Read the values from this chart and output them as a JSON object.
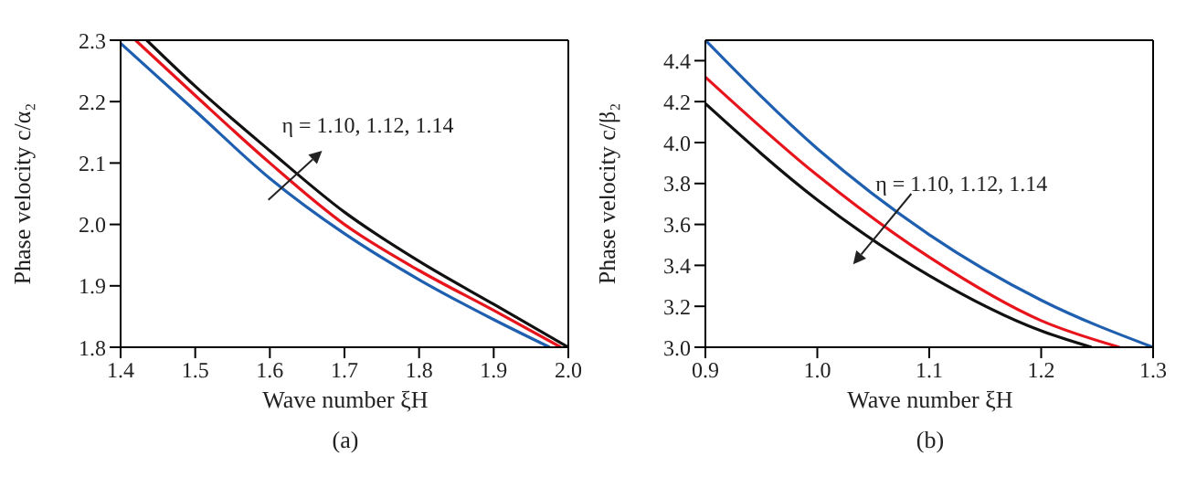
{
  "chart_data": [
    {
      "type": "line",
      "xlabel": "Wave number ξH",
      "ylabel": "Phase velocity c/α₂",
      "xlim": [
        1.4,
        2.0
      ],
      "xticks": [
        {
          "value": 1.4,
          "label": "1.4"
        },
        {
          "value": 1.5,
          "label": "1.5"
        },
        {
          "value": 1.6,
          "label": "1.6"
        },
        {
          "value": 1.7,
          "label": "1.7"
        },
        {
          "value": 1.8,
          "label": "1.8"
        },
        {
          "value": 1.9,
          "label": "1.9"
        },
        {
          "value": 2.0,
          "label": "2.0"
        }
      ],
      "ylim": [
        1.8,
        2.3
      ],
      "yticks": [
        {
          "value": 1.8,
          "label": "1.8"
        },
        {
          "value": 1.9,
          "label": "1.9"
        },
        {
          "value": 2.0,
          "label": "2.0"
        },
        {
          "value": 2.1,
          "label": "2.1"
        },
        {
          "value": 2.2,
          "label": "2.2"
        },
        {
          "value": 2.3,
          "label": "2.3"
        }
      ],
      "grid": false,
      "legend": false,
      "marker": "none",
      "line_style": "solid",
      "annotations": [
        "η = 1.10, 1.12, 1.14",
        "(a)"
      ],
      "series": [
        {
          "color": "#1f5fb0",
          "x": [
            1.4,
            1.5,
            1.6,
            1.7,
            1.8,
            1.9,
            1.975
          ],
          "values": [
            2.295,
            2.185,
            2.075,
            1.985,
            1.91,
            1.845,
            1.8
          ]
        },
        {
          "color": "#e8141c",
          "x": [
            1.42,
            1.5,
            1.6,
            1.7,
            1.8,
            1.9,
            1.99
          ],
          "values": [
            2.3,
            2.21,
            2.1,
            2.0,
            1.925,
            1.86,
            1.8
          ]
        },
        {
          "color": "#111111",
          "x": [
            1.435,
            1.5,
            1.6,
            1.7,
            1.8,
            1.9,
            2.0
          ],
          "values": [
            2.3,
            2.225,
            2.12,
            2.02,
            1.94,
            1.87,
            1.8
          ]
        }
      ]
    },
    {
      "type": "line",
      "xlabel": "Wave number ξH",
      "ylabel": "Phase velocity c/β₂",
      "xlim": [
        0.9,
        1.3
      ],
      "xticks": [
        {
          "value": 0.9,
          "label": "0.9"
        },
        {
          "value": 1.0,
          "label": "1.0"
        },
        {
          "value": 1.1,
          "label": "1.1"
        },
        {
          "value": 1.2,
          "label": "1.2"
        },
        {
          "value": 1.3,
          "label": "1.3"
        }
      ],
      "ylim": [
        3.0,
        4.5
      ],
      "yticks": [
        {
          "value": 3.0,
          "label": "3.0"
        },
        {
          "value": 3.2,
          "label": "3.2"
        },
        {
          "value": 3.4,
          "label": "3.4"
        },
        {
          "value": 3.6,
          "label": "3.6"
        },
        {
          "value": 3.8,
          "label": "3.8"
        },
        {
          "value": 4.0,
          "label": "4.0"
        },
        {
          "value": 4.2,
          "label": "4.2"
        },
        {
          "value": 4.4,
          "label": "4.4"
        }
      ],
      "grid": false,
      "legend": false,
      "marker": "none",
      "line_style": "solid",
      "annotations": [
        "η = 1.10, 1.12, 1.14",
        "(b)"
      ],
      "series": [
        {
          "color": "#1f5fb0",
          "x": [
            0.9,
            1.0,
            1.1,
            1.2,
            1.3
          ],
          "values": [
            4.5,
            3.97,
            3.55,
            3.23,
            3.0
          ]
        },
        {
          "color": "#e8141c",
          "x": [
            0.9,
            1.0,
            1.1,
            1.2,
            1.27
          ],
          "values": [
            4.32,
            3.84,
            3.44,
            3.13,
            3.0
          ]
        },
        {
          "color": "#111111",
          "x": [
            0.9,
            1.0,
            1.1,
            1.2,
            1.245
          ],
          "values": [
            4.19,
            3.72,
            3.35,
            3.08,
            3.0
          ]
        }
      ]
    }
  ]
}
